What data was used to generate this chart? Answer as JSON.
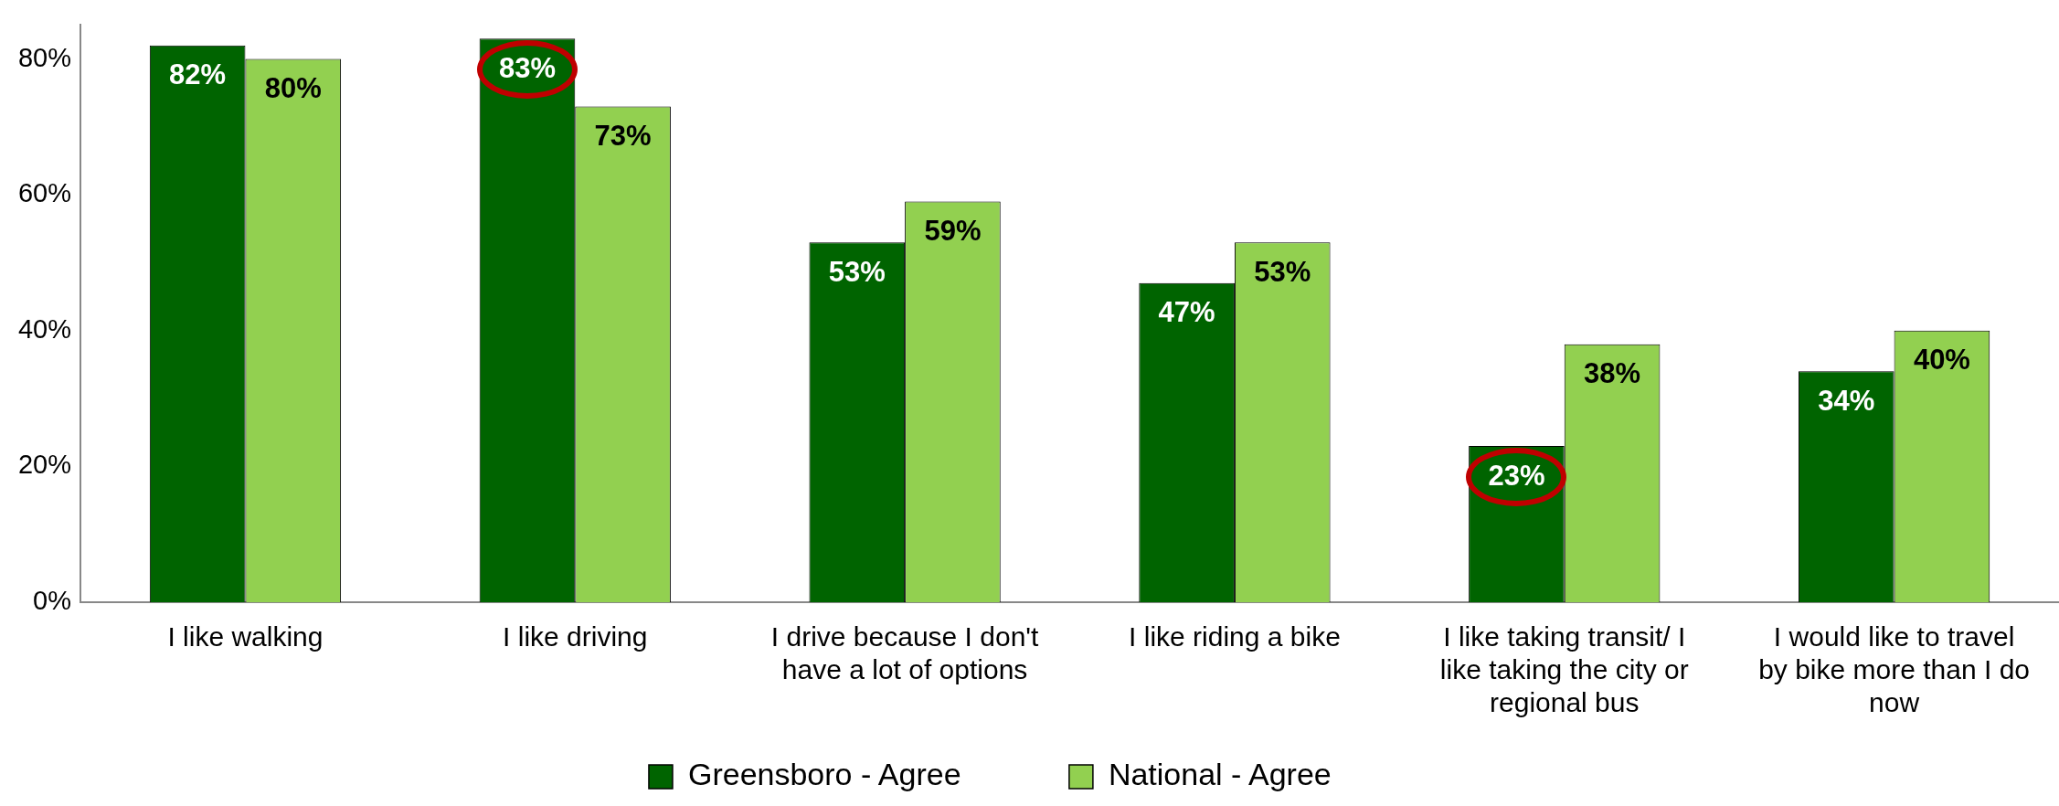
{
  "chart_data": {
    "type": "bar",
    "categories": [
      "I like walking",
      "I like driving",
      "I drive because I don't have a lot of options",
      "I like riding a bike",
      "I like taking transit/ I like taking the city or regional bus",
      "I would like to travel by bike more than I do now"
    ],
    "series": [
      {
        "name": "Greensboro - Agree",
        "color": "#006400",
        "values": [
          82,
          83,
          53,
          47,
          23,
          34
        ],
        "value_labels": [
          "82%",
          "83%",
          "53%",
          "47%",
          "23%",
          "34%"
        ]
      },
      {
        "name": "National - Agree",
        "color": "#92d050",
        "values": [
          80,
          73,
          59,
          53,
          38,
          40
        ],
        "value_labels": [
          "80%",
          "73%",
          "59%",
          "53%",
          "38%",
          "40%"
        ]
      }
    ],
    "ylim": [
      0,
      85
    ],
    "yticks": [
      {
        "value": 0,
        "label": "0%"
      },
      {
        "value": 20,
        "label": "20%"
      },
      {
        "value": 40,
        "label": "40%"
      },
      {
        "value": 60,
        "label": "60%"
      },
      {
        "value": 80,
        "label": "80%"
      }
    ],
    "grid": false,
    "legend": "bottom"
  }
}
